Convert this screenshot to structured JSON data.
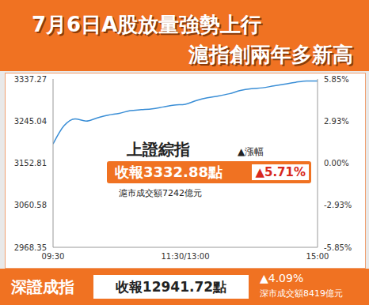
{
  "header": {
    "title": "7月6日A股放量強勢上行",
    "subtitle": "滬指創兩年多新高"
  },
  "chart_data": {
    "type": "line",
    "title": "上證綜指",
    "x": [
      0,
      10,
      20,
      30,
      40,
      50,
      60,
      70,
      80,
      90,
      100,
      110,
      120,
      130,
      140,
      150,
      160,
      170,
      180,
      190,
      200,
      210,
      220,
      230,
      240
    ],
    "series": [
      {
        "color": "#3a8ed6",
        "values": [
          3195,
          3235,
          3250,
          3245,
          3252,
          3258,
          3262,
          3268,
          3270,
          3272,
          3276,
          3280,
          3282,
          3290,
          3296,
          3300,
          3305,
          3312,
          3316,
          3318,
          3322,
          3326,
          3330,
          3333,
          3332.88
        ]
      }
    ],
    "xlim": [
      0,
      240
    ],
    "xticks": [
      {
        "value": 0,
        "label": "09:30"
      },
      {
        "value": 120,
        "label": "11:30/13:00"
      },
      {
        "value": 240,
        "label": "15:00"
      }
    ],
    "ylim": [
      2968.35,
      3337.27
    ],
    "yticks": [
      2968.35,
      3060.58,
      3152.81,
      3245.04,
      3337.27
    ],
    "y2lim": [
      -5.85,
      5.85
    ],
    "y2ticks": [
      {
        "value": -5.85,
        "label": "-5.85%"
      },
      {
        "value": -2.93,
        "label": "-2.93%"
      },
      {
        "value": 0,
        "label": "0.00%"
      },
      {
        "value": 2.93,
        "label": "2.93%"
      },
      {
        "value": 5.85,
        "label": "5.85%"
      }
    ],
    "grid": false,
    "annotations": {
      "change_label": "▲漲幅",
      "close": "收報3332.88點",
      "change": "▲5.71%",
      "turnover": "滬市成交額7242億元"
    }
  },
  "footer": {
    "title": "深證成指",
    "close": "收報12941.72點",
    "change": "▲4.09%",
    "turnover": "深市成交額8419億元"
  }
}
